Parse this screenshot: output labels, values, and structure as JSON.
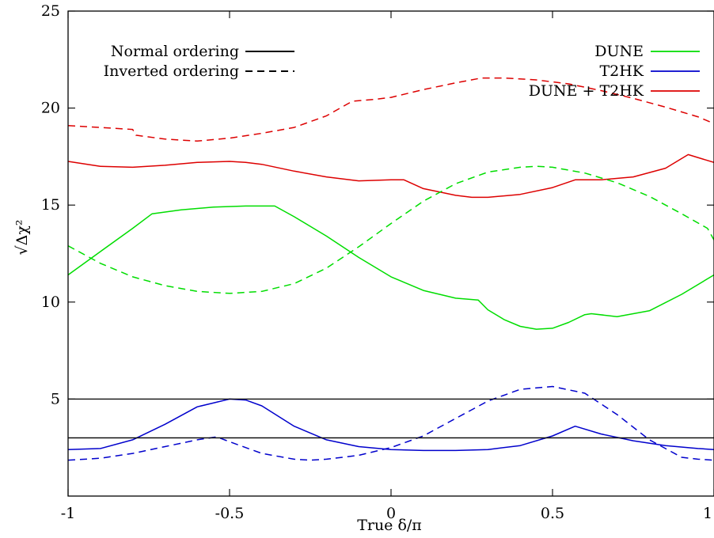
{
  "chart_data": {
    "type": "line",
    "xlabel": "True δ/π",
    "ylabel": "√Δχ²",
    "xlim": [
      -1,
      1
    ],
    "ylim": [
      0,
      25
    ],
    "x_ticks": [
      {
        "value": -1,
        "label": "-1"
      },
      {
        "value": -0.5,
        "label": "-0.5"
      },
      {
        "value": 0,
        "label": "0"
      },
      {
        "value": 0.5,
        "label": "0.5"
      },
      {
        "value": 1,
        "label": "1"
      }
    ],
    "y_ticks": [
      {
        "value": 5,
        "label": "5"
      },
      {
        "value": 10,
        "label": "10"
      },
      {
        "value": 15,
        "label": "15"
      },
      {
        "value": 20,
        "label": "20"
      },
      {
        "value": 25,
        "label": "25"
      }
    ],
    "reference_lines": [
      3,
      5
    ],
    "grid": false,
    "colors": {
      "DUNE": "#00dd00",
      "T2HK": "#0000cc",
      "DUNE + T2HK": "#dd0000"
    },
    "legend_styles": {
      "position": "top-left",
      "entries": [
        {
          "label": "Normal ordering",
          "dash": "solid"
        },
        {
          "label": "Inverted ordering",
          "dash": "dashed"
        }
      ]
    },
    "legend_experiments": {
      "position": "top-right",
      "entries": [
        {
          "label": "DUNE",
          "color": "#00dd00"
        },
        {
          "label": "T2HK",
          "color": "#0000cc"
        },
        {
          "label": "DUNE + T2HK",
          "color": "#dd0000"
        }
      ]
    },
    "series": [
      {
        "experiment": "DUNE + T2HK",
        "ordering": "inverted",
        "color": "#dd0000",
        "dash": "dashed",
        "x": [
          -1,
          -0.9,
          -0.8,
          -0.79,
          -0.7,
          -0.6,
          -0.5,
          -0.4,
          -0.3,
          -0.2,
          -0.12,
          -0.05,
          0,
          0.05,
          0.1,
          0.2,
          0.28,
          0.35,
          0.45,
          0.55,
          0.65,
          0.75,
          0.85,
          0.95,
          1
        ],
        "y": [
          19.1,
          19.0,
          18.9,
          18.6,
          18.4,
          18.3,
          18.45,
          18.7,
          19.0,
          19.6,
          20.35,
          20.45,
          20.55,
          20.75,
          20.95,
          21.3,
          21.55,
          21.55,
          21.45,
          21.25,
          20.9,
          20.5,
          20.05,
          19.55,
          19.2
        ]
      },
      {
        "experiment": "DUNE + T2HK",
        "ordering": "normal",
        "color": "#dd0000",
        "dash": "solid",
        "x": [
          -1,
          -0.9,
          -0.8,
          -0.7,
          -0.6,
          -0.5,
          -0.45,
          -0.4,
          -0.3,
          -0.2,
          -0.1,
          0,
          0.04,
          0.1,
          0.2,
          0.25,
          0.3,
          0.4,
          0.5,
          0.57,
          0.65,
          0.75,
          0.85,
          0.92,
          1
        ],
        "y": [
          17.25,
          17.0,
          16.95,
          17.05,
          17.2,
          17.25,
          17.2,
          17.1,
          16.75,
          16.45,
          16.25,
          16.3,
          16.3,
          15.85,
          15.5,
          15.4,
          15.4,
          15.55,
          15.9,
          16.3,
          16.3,
          16.45,
          16.9,
          17.6,
          17.2
        ]
      },
      {
        "experiment": "DUNE",
        "ordering": "normal",
        "color": "#00dd00",
        "dash": "solid",
        "x": [
          -1,
          -0.9,
          -0.8,
          -0.74,
          -0.65,
          -0.55,
          -0.45,
          -0.36,
          -0.3,
          -0.2,
          -0.1,
          0,
          0.1,
          0.2,
          0.27,
          0.3,
          0.35,
          0.4,
          0.45,
          0.5,
          0.55,
          0.6,
          0.62,
          0.7,
          0.8,
          0.9,
          1
        ],
        "y": [
          11.4,
          12.6,
          13.8,
          14.55,
          14.75,
          14.9,
          14.95,
          14.95,
          14.4,
          13.4,
          12.3,
          11.3,
          10.6,
          10.2,
          10.1,
          9.6,
          9.1,
          8.75,
          8.6,
          8.65,
          8.95,
          9.35,
          9.4,
          9.25,
          9.55,
          10.4,
          11.4
        ]
      },
      {
        "experiment": "DUNE",
        "ordering": "inverted",
        "color": "#00dd00",
        "dash": "dashed",
        "x": [
          -1,
          -0.9,
          -0.8,
          -0.7,
          -0.6,
          -0.5,
          -0.4,
          -0.3,
          -0.2,
          -0.1,
          0,
          0.1,
          0.2,
          0.3,
          0.4,
          0.45,
          0.5,
          0.6,
          0.7,
          0.8,
          0.9,
          0.98,
          1
        ],
        "y": [
          12.9,
          12.0,
          11.3,
          10.85,
          10.55,
          10.45,
          10.55,
          10.95,
          11.75,
          12.85,
          14.05,
          15.2,
          16.1,
          16.7,
          16.95,
          17.0,
          16.95,
          16.65,
          16.15,
          15.45,
          14.55,
          13.8,
          13.2
        ]
      },
      {
        "experiment": "T2HK",
        "ordering": "normal",
        "color": "#0000cc",
        "dash": "solid",
        "x": [
          -1,
          -0.9,
          -0.8,
          -0.7,
          -0.6,
          -0.5,
          -0.45,
          -0.4,
          -0.3,
          -0.2,
          -0.1,
          0,
          0.1,
          0.2,
          0.3,
          0.4,
          0.5,
          0.57,
          0.65,
          0.75,
          0.85,
          0.95,
          1
        ],
        "y": [
          2.4,
          2.45,
          2.9,
          3.7,
          4.6,
          5.0,
          4.95,
          4.65,
          3.6,
          2.9,
          2.55,
          2.4,
          2.35,
          2.35,
          2.4,
          2.6,
          3.1,
          3.6,
          3.2,
          2.85,
          2.6,
          2.45,
          2.4
        ]
      },
      {
        "experiment": "T2HK",
        "ordering": "inverted",
        "color": "#0000cc",
        "dash": "dashed",
        "x": [
          -1,
          -0.9,
          -0.8,
          -0.7,
          -0.6,
          -0.54,
          -0.5,
          -0.4,
          -0.3,
          -0.25,
          -0.2,
          -0.1,
          0,
          0.1,
          0.2,
          0.3,
          0.4,
          0.5,
          0.6,
          0.7,
          0.8,
          0.9,
          0.95,
          1
        ],
        "y": [
          1.85,
          1.95,
          2.2,
          2.55,
          2.9,
          3.05,
          2.8,
          2.2,
          1.9,
          1.85,
          1.9,
          2.1,
          2.5,
          3.1,
          4.0,
          4.9,
          5.5,
          5.65,
          5.3,
          4.2,
          2.9,
          2.0,
          1.9,
          1.85
        ]
      }
    ]
  }
}
